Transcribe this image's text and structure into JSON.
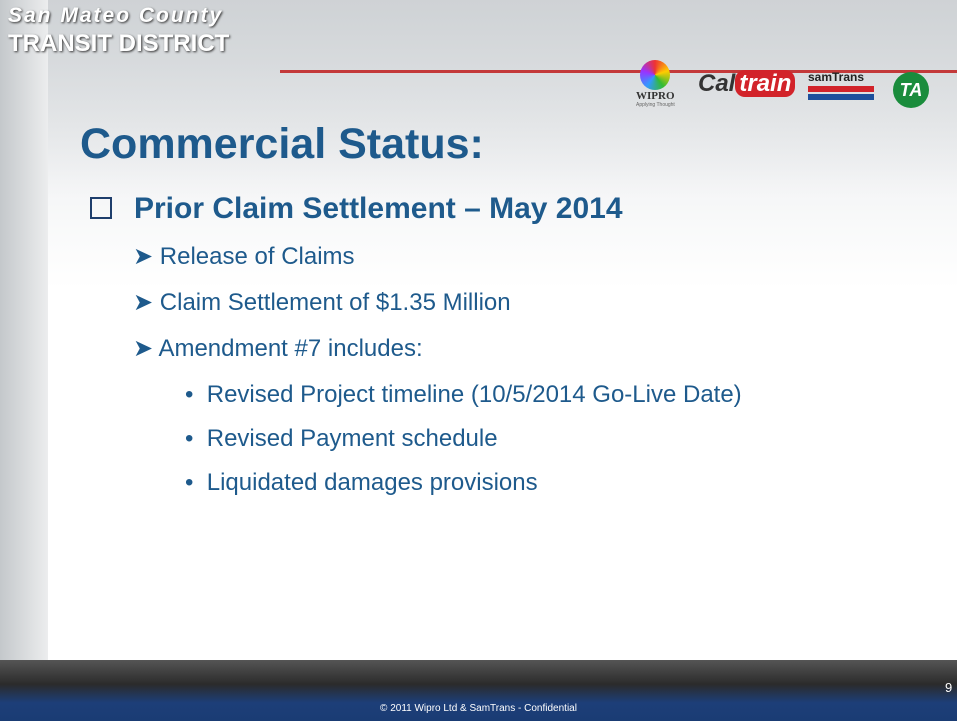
{
  "header": {
    "org_line1": "San Mateo County",
    "org_line2": "TRANSIT DISTRICT",
    "logos": [
      "WIPRO",
      "Applying Thought",
      "Cal",
      "train",
      "samTrans",
      "TA"
    ]
  },
  "slide": {
    "title": "Commercial Status:",
    "heading": "Prior Claim Settlement – May 2014",
    "items": [
      "Release of Claims",
      "Claim Settlement of $1.35 Million",
      "Amendment #7 includes:"
    ],
    "subitems": [
      "Revised Project timeline (10/5/2014 Go-Live Date)",
      "Revised Payment schedule",
      "Liquidated damages provisions"
    ]
  },
  "footer": {
    "page_number": "9",
    "confidential": "© 2011 Wipro Ltd & SamTrans -   Confidential"
  }
}
